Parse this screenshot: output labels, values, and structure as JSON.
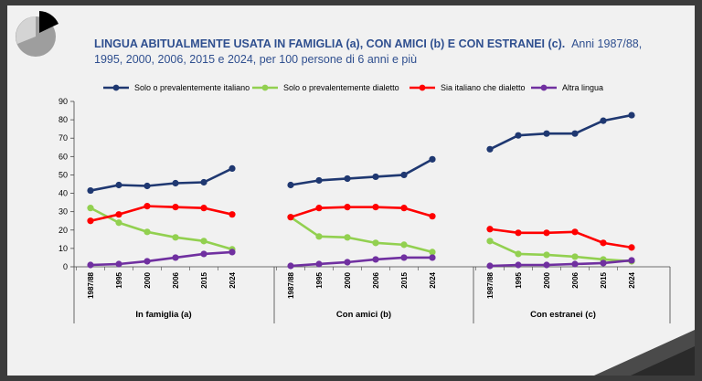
{
  "chart_data": {
    "type": "line",
    "title_bold": "LINGUA ABITUALMENTE USATA IN FAMIGLIA (a), CON AMICI (b) E CON ESTRANEI (c).",
    "title_rest_line1": "Anni 1987/88,",
    "title_line2": "1995, 2000, 2006, 2015 e 2024, per 100 persone di 6 anni e più",
    "y_ticks": [
      "0",
      "10",
      "20",
      "30",
      "40",
      "50",
      "60",
      "70",
      "80",
      "90"
    ],
    "ylim": [
      0,
      90
    ],
    "grid": false,
    "legend_position": "top",
    "categories": [
      "1987/88",
      "1995",
      "2000",
      "2006",
      "2015",
      "2024"
    ],
    "groups": [
      {
        "label": "In famiglia (a)",
        "series": [
          {
            "name": "Solo o prevalentemente italiano",
            "color": "#1f3871",
            "values": [
              41.5,
              44.5,
              44,
              45.5,
              46,
              53.5
            ]
          },
          {
            "name": "Solo o prevalentemente dialetto",
            "color": "#92d050",
            "values": [
              32,
              24,
              19,
              16,
              14,
              9.5
            ]
          },
          {
            "name": "Sia italiano che dialetto",
            "color": "#ff0000",
            "values": [
              25,
              28.5,
              33,
              32.5,
              32,
              28.5
            ]
          },
          {
            "name": "Altra lingua",
            "color": "#7030a0",
            "values": [
              1,
              1.5,
              3,
              5,
              7,
              8
            ]
          }
        ]
      },
      {
        "label": "Con amici (b)",
        "series": [
          {
            "name": "Solo o prevalentemente italiano",
            "color": "#1f3871",
            "values": [
              44.5,
              47,
              48,
              49,
              50,
              58.5
            ]
          },
          {
            "name": "Solo o prevalentemente dialetto",
            "color": "#92d050",
            "values": [
              27,
              16.5,
              16,
              13,
              12,
              8
            ]
          },
          {
            "name": "Sia italiano che dialetto",
            "color": "#ff0000",
            "values": [
              27,
              32,
              32.5,
              32.5,
              32,
              27.5
            ]
          },
          {
            "name": "Altra lingua",
            "color": "#7030a0",
            "values": [
              0.5,
              1.5,
              2.5,
              4,
              5,
              5
            ]
          }
        ]
      },
      {
        "label": "Con estranei (c)",
        "series": [
          {
            "name": "Solo o prevalentemente italiano",
            "color": "#1f3871",
            "values": [
              64,
              71.5,
              72.5,
              72.5,
              79.5,
              82.5
            ]
          },
          {
            "name": "Solo o prevalentemente dialetto",
            "color": "#92d050",
            "values": [
              14,
              7,
              6.5,
              5.5,
              4,
              3
            ]
          },
          {
            "name": "Sia italiano che dialetto",
            "color": "#ff0000",
            "values": [
              20.5,
              18.5,
              18.5,
              19,
              13,
              10.5
            ]
          },
          {
            "name": "Altra lingua",
            "color": "#7030a0",
            "values": [
              0.5,
              1,
              1,
              1.5,
              2,
              3.5
            ]
          }
        ]
      }
    ],
    "legend": [
      {
        "name": "Solo o prevalentemente italiano",
        "color": "#1f3871"
      },
      {
        "name": "Solo o prevalentemente dialetto",
        "color": "#92d050"
      },
      {
        "name": "Sia italiano che dialetto",
        "color": "#ff0000"
      },
      {
        "name": "Altra lingua",
        "color": "#7030a0"
      }
    ]
  }
}
